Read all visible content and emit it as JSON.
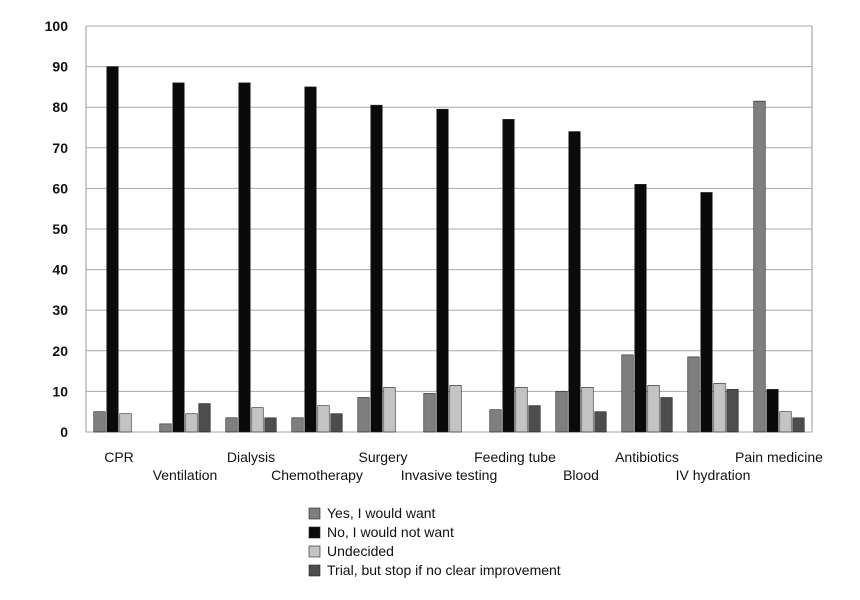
{
  "chart_data": {
    "type": "bar",
    "categories": [
      "CPR",
      "Ventilation",
      "Dialysis",
      "Chemotherapy",
      "Surgery",
      "Invasive testing",
      "Feeding tube",
      "Blood",
      "Antibiotics",
      "IV hydration",
      "Pain medicine"
    ],
    "series": [
      {
        "name": "Yes, I would want",
        "color": "#7f7f7f",
        "values": [
          5,
          2,
          3.5,
          3.5,
          8.5,
          9.5,
          5.5,
          10,
          19,
          18.5,
          81.5
        ]
      },
      {
        "name": "No, I would not want",
        "color": "#0a0a0a",
        "values": [
          90,
          86,
          86,
          85,
          80.5,
          79.5,
          77,
          74,
          61,
          59,
          10.5
        ]
      },
      {
        "name": "Undecided",
        "color": "#c4c4c4",
        "values": [
          4.5,
          4.5,
          6,
          6.5,
          11,
          11.5,
          11,
          11,
          11.5,
          12,
          5
        ]
      },
      {
        "name": "Trial, but stop if no clear improvement",
        "color": "#4d4d4d",
        "values": [
          0,
          7,
          3.5,
          4.5,
          0,
          0,
          6.5,
          5,
          8.5,
          10.5,
          3.5
        ]
      }
    ],
    "yticks": [
      "0",
      "10",
      "20",
      "30",
      "40",
      "50",
      "60",
      "70",
      "80",
      "90",
      "100"
    ],
    "ylim": [
      0,
      100
    ],
    "grid": true,
    "legend": "bottom"
  }
}
